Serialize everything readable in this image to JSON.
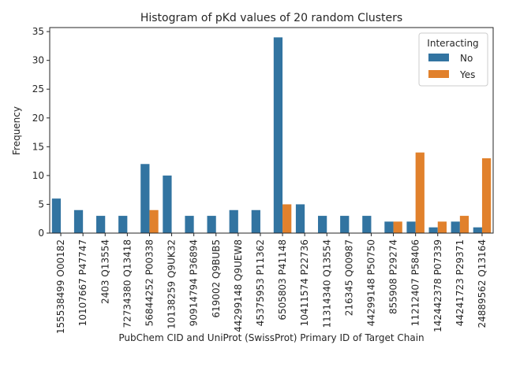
{
  "chart_data": {
    "type": "bar",
    "title": "Histogram of pKd values of 20 random Clusters",
    "xlabel": "PubChem CID and UniProt (SwissProt) Primary ID of Target Chain",
    "ylabel": "Frequency",
    "ylim": [
      0,
      35.7
    ],
    "yticks": [
      0,
      5,
      10,
      15,
      20,
      25,
      30,
      35
    ],
    "categories": [
      "155538499 O00182",
      "10107667 P47747",
      "2403 Q13554",
      "72734380 Q13418",
      "56844252 P00338",
      "10138259 Q9UK32",
      "90914794 P36894",
      "619002 Q9BUB5",
      "44299148 Q9UEW8",
      "45375953 P11362",
      "6505803 P41148",
      "10411574 P22736",
      "11314340 Q13554",
      "216345 Q00987",
      "44299148 P50750",
      "855908 P29274",
      "11212407 P58406",
      "142442378 P07339",
      "44241723 P29371",
      "24889562 Q13164"
    ],
    "series": [
      {
        "name": "No",
        "color": "#3274a1",
        "values": [
          6,
          4,
          3,
          3,
          12,
          10,
          3,
          3,
          4,
          4,
          34,
          5,
          3,
          3,
          3,
          2,
          2,
          1,
          2,
          1
        ]
      },
      {
        "name": "Yes",
        "color": "#e1812c",
        "values": [
          0,
          0,
          0,
          0,
          4,
          0,
          0,
          0,
          0,
          0,
          5,
          0,
          0,
          0,
          0,
          2,
          14,
          2,
          3,
          13
        ]
      }
    ],
    "legend": {
      "title": "Interacting",
      "placement": "top-right"
    },
    "grid": false
  }
}
